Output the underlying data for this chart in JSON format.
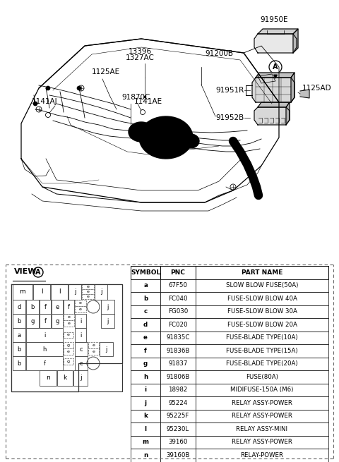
{
  "bg_color": "#ffffff",
  "table_headers": [
    "SYMBOL",
    "PNC",
    "PART NAME"
  ],
  "table_rows": [
    [
      "a",
      "67F50",
      "SLOW BLOW FUSE(50A)"
    ],
    [
      "b",
      "FC040",
      "FUSE-SLOW BLOW 40A"
    ],
    [
      "c",
      "FG030",
      "FUSE-SLOW BLOW 30A"
    ],
    [
      "d",
      "FC020",
      "FUSE-SLOW BLOW 20A"
    ],
    [
      "e",
      "91835C",
      "FUSE-BLADE TYPE(10A)"
    ],
    [
      "f",
      "91836B",
      "FUSE-BLADE TYPE(15A)"
    ],
    [
      "g",
      "91837",
      "FUSE-BLADE TYPE(20A)"
    ],
    [
      "h",
      "91806B",
      "FUSE(80A)"
    ],
    [
      "i",
      "18982",
      "MIDIFUSE-150A (M6)"
    ],
    [
      "j",
      "95224",
      "RELAY ASSY-POWER"
    ],
    [
      "k",
      "95225F",
      "RELAY ASSY-POWER"
    ],
    [
      "l",
      "95230L",
      "RELAY ASSY-MINI"
    ],
    [
      "m",
      "39160",
      "RELAY ASSY-POWER"
    ],
    [
      "n",
      "39160B",
      "RELAY-POWER"
    ]
  ]
}
